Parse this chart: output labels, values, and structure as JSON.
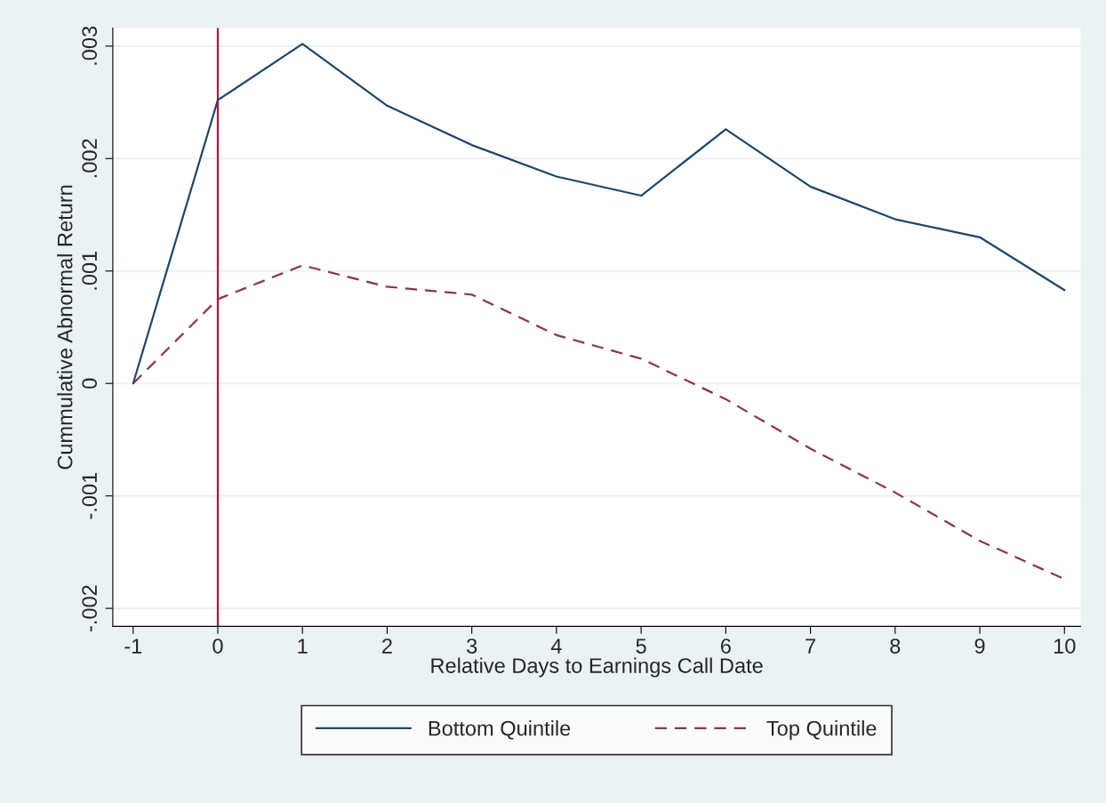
{
  "chart_data": {
    "type": "line",
    "xlabel": "Relative Days to Earnings Call Date",
    "ylabel": "Cummulative Abnormal Return",
    "x": [
      -1,
      0,
      1,
      2,
      3,
      4,
      5,
      6,
      7,
      8,
      9,
      10
    ],
    "series": [
      {
        "name": "Bottom Quintile",
        "color": "#1a476f",
        "line_style": "solid",
        "values": [
          0,
          0.00252,
          0.00302,
          0.00247,
          0.00212,
          0.00184,
          0.00167,
          0.00226,
          0.00175,
          0.00146,
          0.0013,
          0.00083
        ]
      },
      {
        "name": "Top Quintile",
        "color": "#90353b",
        "line_style": "dashed",
        "values": [
          0,
          0.00075,
          0.00105,
          0.00086,
          0.00079,
          0.00043,
          0.00022,
          -0.00014,
          -0.00058,
          -0.00097,
          -0.0014,
          -0.00174
        ]
      }
    ],
    "xlim": [
      -1.24,
      10.19
    ],
    "ylim": [
      -0.00216,
      0.00316
    ],
    "xticks": [
      -1,
      0,
      1,
      2,
      3,
      4,
      5,
      6,
      7,
      8,
      9,
      10
    ],
    "yticks": [
      {
        "value": -0.002,
        "label": "-.002"
      },
      {
        "value": -0.001,
        "label": "-.001"
      },
      0,
      {
        "value": 0.001,
        "label": ".001"
      },
      {
        "value": 0.002,
        "label": ".002"
      },
      {
        "value": 0.003,
        "label": ".003"
      }
    ],
    "ref_lines": [
      {
        "axis": "x",
        "value": 0,
        "color": "#c10534"
      }
    ],
    "grid": "y",
    "legend": "bottom",
    "marker": "none"
  }
}
